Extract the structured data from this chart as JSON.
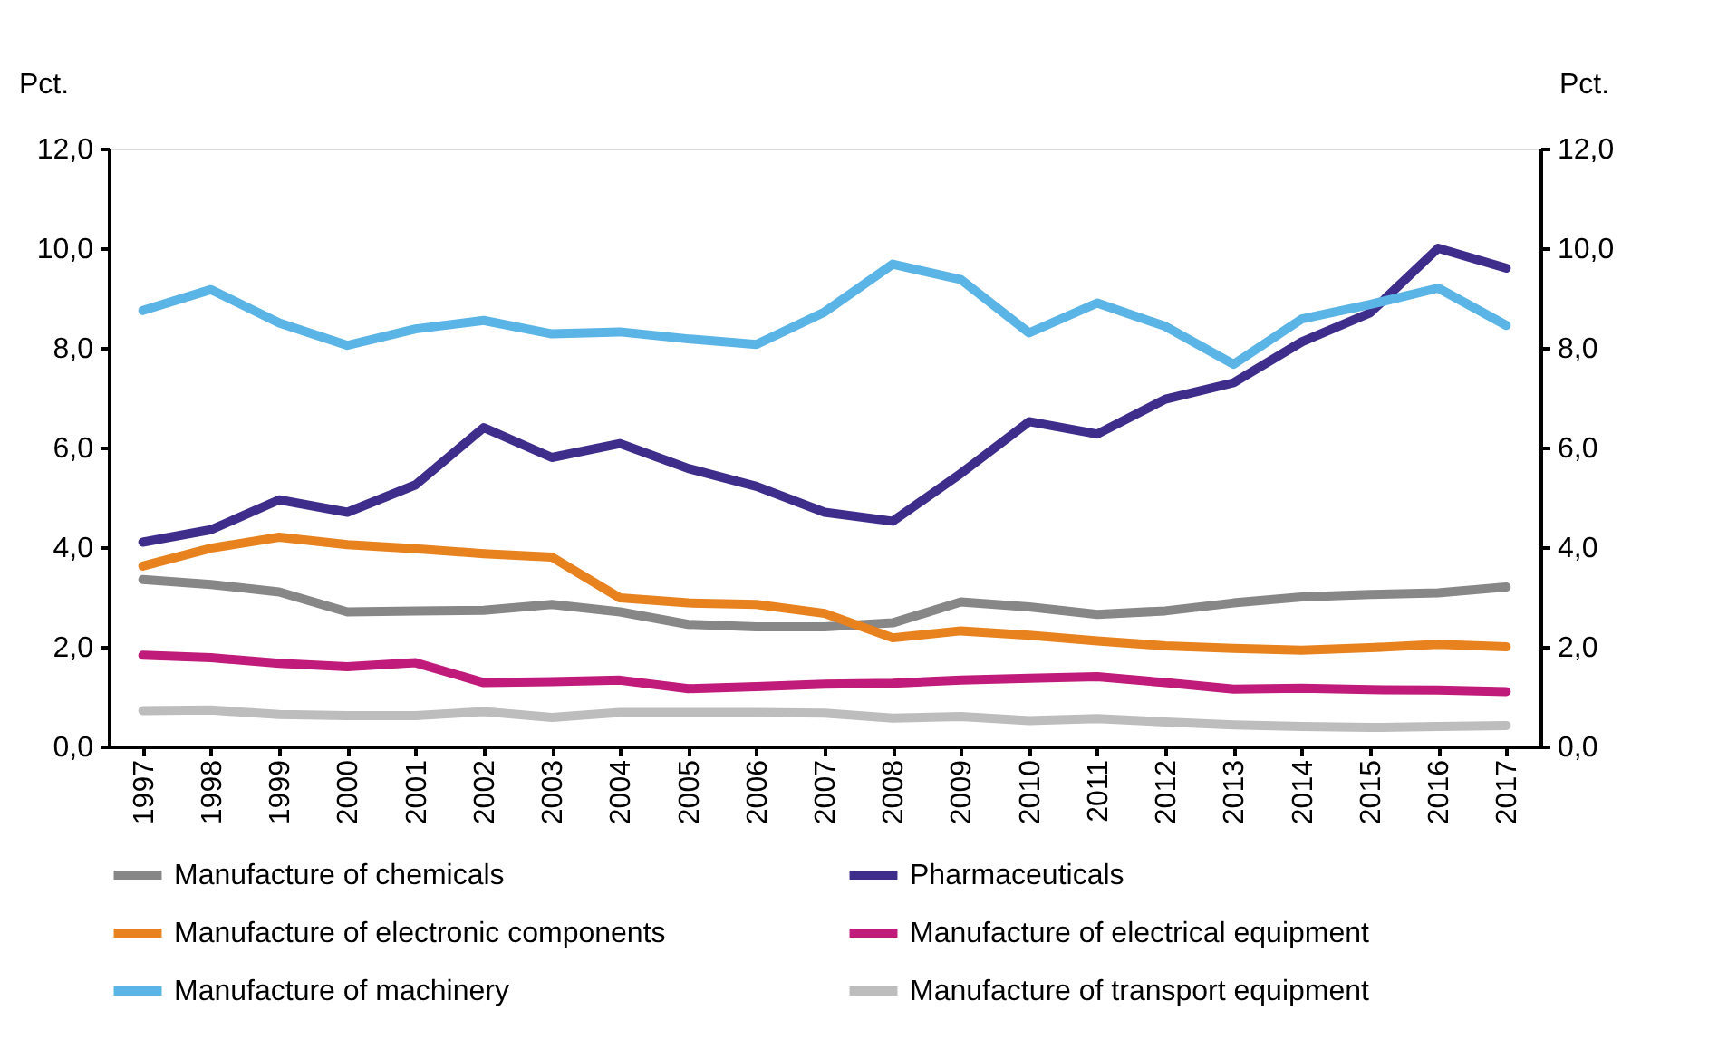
{
  "chart_data": {
    "type": "line",
    "ylabel": "Pct.",
    "y2label": "Pct.",
    "categories": [
      "1997",
      "1998",
      "1999",
      "2000",
      "2001",
      "2002",
      "2003",
      "2004",
      "2005",
      "2006",
      "2007",
      "2008",
      "2009",
      "2010",
      "2011",
      "2012",
      "2013",
      "2014",
      "2015",
      "2016",
      "2017"
    ],
    "series": [
      {
        "name": "Manufacture of chemicals",
        "color": "#878787",
        "values": [
          3.35,
          3.25,
          3.1,
          2.7,
          2.72,
          2.73,
          2.85,
          2.7,
          2.45,
          2.4,
          2.4,
          2.48,
          2.9,
          2.8,
          2.65,
          2.72,
          2.88,
          3.0,
          3.05,
          3.08,
          3.2
        ]
      },
      {
        "name": "Pharmaceuticals",
        "color": "#3f2d8c",
        "values": [
          4.1,
          4.35,
          4.95,
          4.7,
          5.25,
          6.4,
          5.8,
          6.08,
          5.58,
          5.22,
          4.7,
          4.52,
          5.48,
          6.52,
          6.27,
          6.97,
          7.3,
          8.12,
          8.7,
          10.0,
          9.6
        ]
      },
      {
        "name": "Manufacture of electronic components",
        "color": "#e8821e",
        "values": [
          3.62,
          3.98,
          4.2,
          4.05,
          3.97,
          3.87,
          3.8,
          2.98,
          2.88,
          2.85,
          2.67,
          2.18,
          2.32,
          2.23,
          2.12,
          2.02,
          1.97,
          1.93,
          1.98,
          2.05,
          2.0
        ]
      },
      {
        "name": "Manufacture of electrical equipment",
        "color": "#c01a7a",
        "values": [
          1.83,
          1.78,
          1.67,
          1.6,
          1.68,
          1.28,
          1.3,
          1.33,
          1.16,
          1.2,
          1.25,
          1.27,
          1.33,
          1.37,
          1.4,
          1.28,
          1.15,
          1.17,
          1.14,
          1.13,
          1.1
        ]
      },
      {
        "name": "Manufacture of machinery",
        "color": "#5ab4e5",
        "values": [
          8.75,
          9.17,
          8.5,
          8.05,
          8.38,
          8.55,
          8.28,
          8.32,
          8.18,
          8.07,
          8.72,
          9.68,
          9.37,
          8.3,
          8.9,
          8.43,
          7.67,
          8.58,
          8.87,
          9.2,
          8.45
        ]
      },
      {
        "name": "Manufacture of transport equipment",
        "color": "#bdbdbd",
        "values": [
          0.72,
          0.73,
          0.64,
          0.62,
          0.62,
          0.7,
          0.58,
          0.68,
          0.68,
          0.68,
          0.67,
          0.57,
          0.6,
          0.52,
          0.56,
          0.49,
          0.43,
          0.4,
          0.38,
          0.4,
          0.42
        ]
      }
    ],
    "ylim": [
      0,
      12
    ],
    "yticks": [
      {
        "value": 0,
        "label": "0,0"
      },
      {
        "value": 2,
        "label": "2,0"
      },
      {
        "value": 4,
        "label": "4,0"
      },
      {
        "value": 6,
        "label": "6,0"
      },
      {
        "value": 8,
        "label": "8,0"
      },
      {
        "value": 10,
        "label": "10,0"
      },
      {
        "value": 12,
        "label": "12,0"
      }
    ],
    "y2lim": [
      0,
      12
    ],
    "y2ticks": [
      {
        "value": 0,
        "label": "0,0"
      },
      {
        "value": 2,
        "label": "2,0"
      },
      {
        "value": 4,
        "label": "4,0"
      },
      {
        "value": 6,
        "label": "6,0"
      },
      {
        "value": 8,
        "label": "8,0"
      },
      {
        "value": 10,
        "label": "10,0"
      },
      {
        "value": 12,
        "label": "12,0"
      }
    ],
    "grid": false,
    "legend": "bottom",
    "marker": "none",
    "line_style": "solid"
  }
}
